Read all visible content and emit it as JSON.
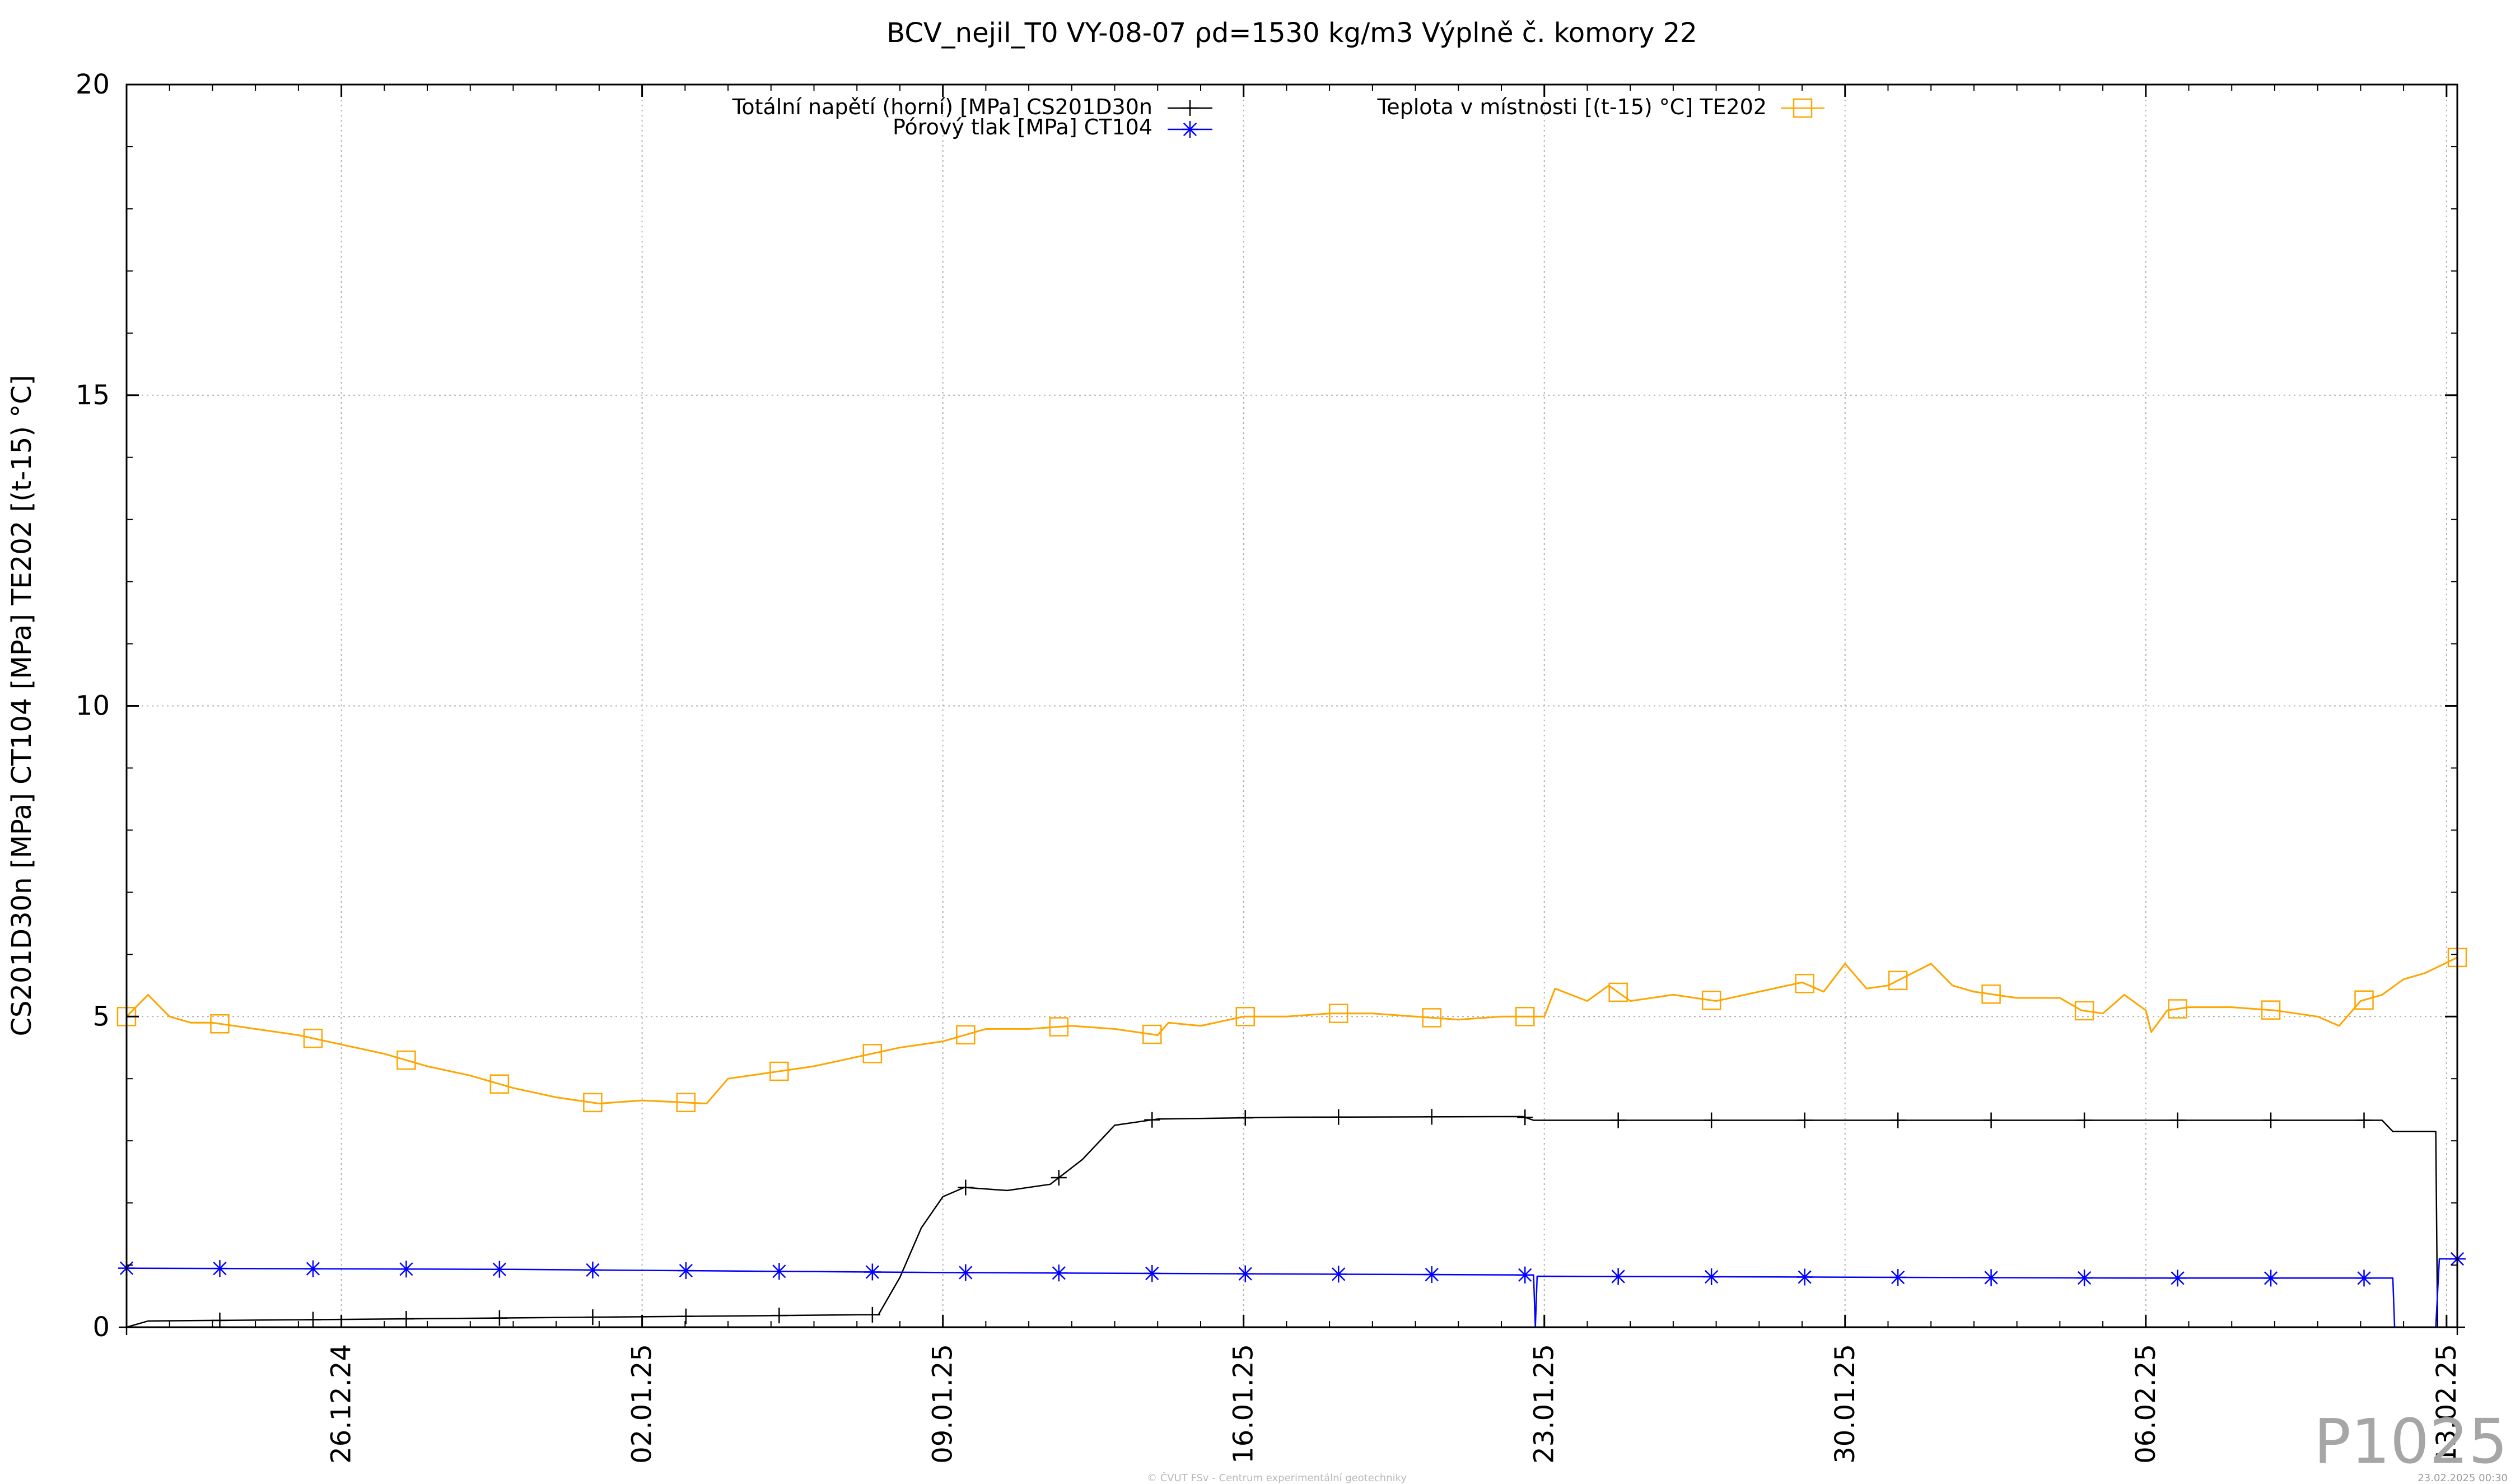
{
  "chart_data": {
    "type": "line",
    "title": "BCV_nejil_T0 VY-08-07 ρd=1530 kg/m3 Výplně č. komory 22",
    "ylabel": "CS201D30n [MPa] CT104 [MPa] TE202 [(t-15) °C]",
    "xlabel": "",
    "x_range": [
      "2024-12-21 00:00",
      "2025-02-13 06:00"
    ],
    "ylim": [
      0,
      20
    ],
    "y_ticks": [
      "0",
      "5",
      "10",
      "15",
      "20"
    ],
    "x_ticks": [
      "26.12.24",
      "02.01.25",
      "09.01.25",
      "16.01.25",
      "23.01.25",
      "30.01.25",
      "06.02.25",
      "13.02.25"
    ],
    "x_tick_dates": [
      "2024-12-26",
      "2025-01-02",
      "2025-01-09",
      "2025-01-16",
      "2025-01-23",
      "2025-01-30",
      "2025-02-06",
      "2025-02-13"
    ],
    "grid": true,
    "legend_position": "top",
    "series": [
      {
        "name": "Totální napětí (horní) [MPa] CS201D30n",
        "color": "#000000",
        "marker": "plus",
        "points": [
          [
            "2024-12-21 00:00",
            0.0
          ],
          [
            "2024-12-21 12:00",
            0.1
          ],
          [
            "2024-12-25 00:00",
            0.12
          ],
          [
            "2024-12-30 00:00",
            0.15
          ],
          [
            "2025-01-04 00:00",
            0.18
          ],
          [
            "2025-01-07 00:00",
            0.2
          ],
          [
            "2025-01-07 12:00",
            0.2
          ],
          [
            "2025-01-08 00:00",
            0.8
          ],
          [
            "2025-01-08 12:00",
            1.6
          ],
          [
            "2025-01-09 00:00",
            2.1
          ],
          [
            "2025-01-09 12:00",
            2.25
          ],
          [
            "2025-01-10 12:00",
            2.2
          ],
          [
            "2025-01-11 12:00",
            2.3
          ],
          [
            "2025-01-12 06:00",
            2.7
          ],
          [
            "2025-01-13 00:00",
            3.25
          ],
          [
            "2025-01-14 00:00",
            3.35
          ],
          [
            "2025-01-17 00:00",
            3.38
          ],
          [
            "2025-01-22 12:00",
            3.39
          ],
          [
            "2025-01-22 18:00",
            3.33
          ],
          [
            "2025-01-30 00:00",
            3.33
          ],
          [
            "2025-02-11 12:00",
            3.33
          ],
          [
            "2025-02-11 18:00",
            3.15
          ],
          [
            "2025-02-12 18:00",
            3.15
          ],
          [
            "2025-02-12 19:00",
            0.0
          ],
          [
            "2025-02-13 06:00",
            0.0
          ]
        ]
      },
      {
        "name": "Pórový tlak [MPa] CT104",
        "color": "#0000ff",
        "marker": "star",
        "points": [
          [
            "2024-12-21 00:00",
            0.95
          ],
          [
            "2024-12-30 00:00",
            0.93
          ],
          [
            "2025-01-09 00:00",
            0.88
          ],
          [
            "2025-01-22 18:00",
            0.84
          ],
          [
            "2025-01-22 19:00",
            0.0
          ],
          [
            "2025-01-22 20:00",
            0.82
          ],
          [
            "2025-02-06 00:00",
            0.79
          ],
          [
            "2025-02-11 18:00",
            0.79
          ],
          [
            "2025-02-11 19:00",
            0.0
          ],
          [
            "2025-02-12 18:00",
            0.0
          ],
          [
            "2025-02-12 20:00",
            1.1
          ],
          [
            "2025-02-13 06:00",
            1.1
          ]
        ]
      },
      {
        "name": "Teplota v místnosti [(t-15) °C] TE202",
        "color": "#ffa500",
        "marker": "square",
        "points": [
          [
            "2024-12-21 00:00",
            5.0
          ],
          [
            "2024-12-21 12:00",
            5.35
          ],
          [
            "2024-12-22 00:00",
            5.0
          ],
          [
            "2024-12-22 12:00",
            4.9
          ],
          [
            "2024-12-23 00:00",
            4.9
          ],
          [
            "2024-12-24 00:00",
            4.8
          ],
          [
            "2024-12-25 00:00",
            4.7
          ],
          [
            "2024-12-26 00:00",
            4.55
          ],
          [
            "2024-12-27 00:00",
            4.4
          ],
          [
            "2024-12-28 00:00",
            4.2
          ],
          [
            "2024-12-29 00:00",
            4.05
          ],
          [
            "2024-12-30 00:00",
            3.85
          ],
          [
            "2024-12-31 00:00",
            3.7
          ],
          [
            "2025-01-01 00:00",
            3.6
          ],
          [
            "2025-01-02 00:00",
            3.65
          ],
          [
            "2025-01-03 12:00",
            3.6
          ],
          [
            "2025-01-04 00:00",
            4.0
          ],
          [
            "2025-01-05 00:00",
            4.1
          ],
          [
            "2025-01-06 00:00",
            4.2
          ],
          [
            "2025-01-07 00:00",
            4.35
          ],
          [
            "2025-01-08 00:00",
            4.5
          ],
          [
            "2025-01-09 00:00",
            4.6
          ],
          [
            "2025-01-10 00:00",
            4.8
          ],
          [
            "2025-01-11 00:00",
            4.8
          ],
          [
            "2025-01-12 00:00",
            4.85
          ],
          [
            "2025-01-13 00:00",
            4.8
          ],
          [
            "2025-01-14 00:00",
            4.7
          ],
          [
            "2025-01-14 06:00",
            4.9
          ],
          [
            "2025-01-15 00:00",
            4.85
          ],
          [
            "2025-01-16 00:00",
            5.0
          ],
          [
            "2025-01-17 00:00",
            5.0
          ],
          [
            "2025-01-18 00:00",
            5.05
          ],
          [
            "2025-01-19 00:00",
            5.05
          ],
          [
            "2025-01-20 00:00",
            5.0
          ],
          [
            "2025-01-21 00:00",
            4.95
          ],
          [
            "2025-01-22 00:00",
            5.0
          ],
          [
            "2025-01-23 00:00",
            5.0
          ],
          [
            "2025-01-23 06:00",
            5.45
          ],
          [
            "2025-01-24 00:00",
            5.25
          ],
          [
            "2025-01-24 12:00",
            5.5
          ],
          [
            "2025-01-25 00:00",
            5.25
          ],
          [
            "2025-01-26 00:00",
            5.35
          ],
          [
            "2025-01-27 00:00",
            5.25
          ],
          [
            "2025-01-28 00:00",
            5.4
          ],
          [
            "2025-01-29 00:00",
            5.55
          ],
          [
            "2025-01-29 12:00",
            5.4
          ],
          [
            "2025-01-30 00:00",
            5.85
          ],
          [
            "2025-01-30 12:00",
            5.45
          ],
          [
            "2025-01-31 00:00",
            5.5
          ],
          [
            "2025-02-01 00:00",
            5.85
          ],
          [
            "2025-02-01 12:00",
            5.5
          ],
          [
            "2025-02-02 00:00",
            5.4
          ],
          [
            "2025-02-03 00:00",
            5.3
          ],
          [
            "2025-02-04 00:00",
            5.3
          ],
          [
            "2025-02-04 12:00",
            5.1
          ],
          [
            "2025-02-05 00:00",
            5.05
          ],
          [
            "2025-02-05 12:00",
            5.35
          ],
          [
            "2025-02-06 00:00",
            5.1
          ],
          [
            "2025-02-06 03:00",
            4.75
          ],
          [
            "2025-02-06 12:00",
            5.1
          ],
          [
            "2025-02-07 00:00",
            5.15
          ],
          [
            "2025-02-08 00:00",
            5.15
          ],
          [
            "2025-02-09 00:00",
            5.1
          ],
          [
            "2025-02-10 00:00",
            5.0
          ],
          [
            "2025-02-10 12:00",
            4.85
          ],
          [
            "2025-02-11 00:00",
            5.25
          ],
          [
            "2025-02-11 12:00",
            5.35
          ],
          [
            "2025-02-12 00:00",
            5.6
          ],
          [
            "2025-02-12 12:00",
            5.7
          ],
          [
            "2025-02-13 06:00",
            5.95
          ]
        ]
      }
    ]
  },
  "plot_id": "P1025",
  "footer": "© ČVUT FSv - Centrum experimentální geotechniky",
  "timestamp": "23.02.2025 00:30"
}
